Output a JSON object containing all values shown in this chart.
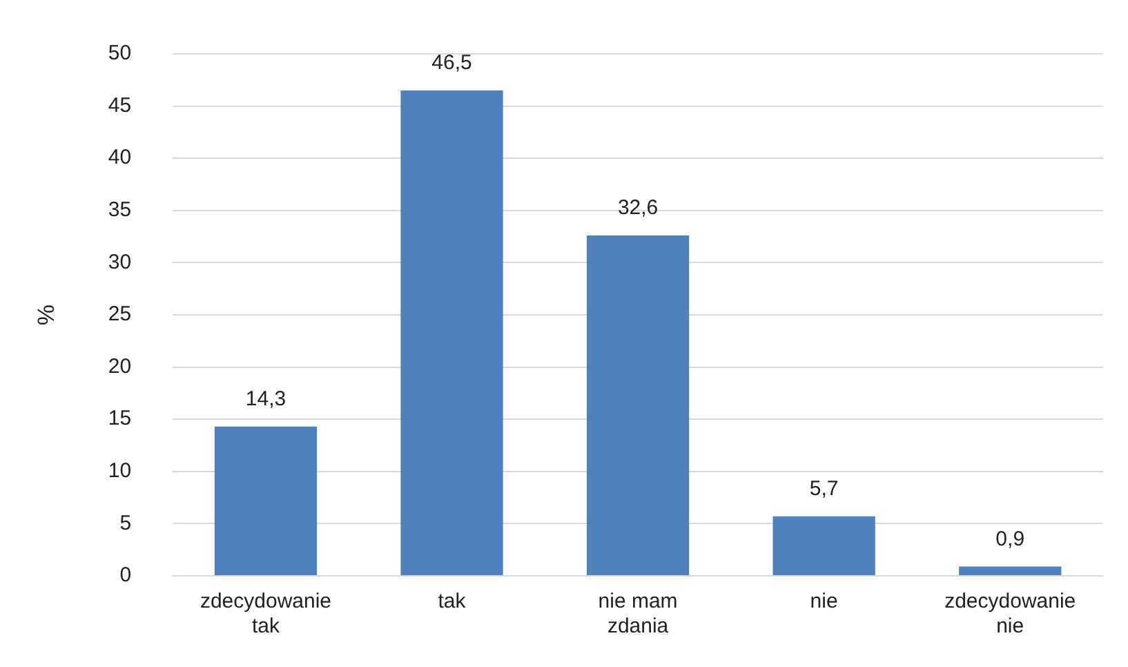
{
  "chart_data": {
    "type": "bar",
    "ylabel": "%",
    "categories": [
      "zdecydowanie tak",
      "tak",
      "nie mam zdania",
      "nie",
      "zdecydowanie nie"
    ],
    "values": [
      14.3,
      46.5,
      32.6,
      5.7,
      0.9
    ],
    "value_labels": [
      "14,3",
      "46,5",
      "32,6",
      "5,7",
      "0,9"
    ],
    "color": "#4f81bd",
    "ylim": [
      0,
      50
    ],
    "yticks": [
      0,
      5,
      10,
      15,
      20,
      25,
      30,
      35,
      40,
      45,
      50
    ],
    "grid": "y",
    "legend": false
  }
}
